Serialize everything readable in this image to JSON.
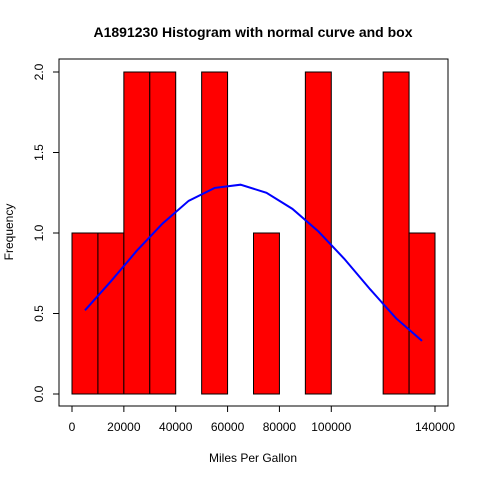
{
  "chart_data": {
    "type": "bar",
    "title": "A1891230 Histogram with normal curve and box",
    "xlabel": "Miles Per Gallon",
    "ylabel": "Frequency",
    "bin_edges": [
      0,
      10000,
      20000,
      30000,
      40000,
      50000,
      60000,
      70000,
      80000,
      90000,
      100000,
      110000,
      120000,
      130000,
      140000
    ],
    "counts": [
      1,
      1,
      2,
      2,
      0,
      2,
      0,
      1,
      0,
      2,
      0,
      0,
      2,
      1
    ],
    "bar_color": "#ff0000",
    "curve_color": "#0000ff",
    "curve_x": [
      5000,
      15000,
      25000,
      35000,
      45000,
      55000,
      65000,
      75000,
      85000,
      95000,
      105000,
      115000,
      125000,
      135000
    ],
    "curve_y": [
      0.52,
      0.7,
      0.89,
      1.06,
      1.2,
      1.28,
      1.3,
      1.25,
      1.15,
      1.01,
      0.84,
      0.65,
      0.47,
      0.33
    ],
    "x_ticks": [
      0,
      20000,
      40000,
      60000,
      80000,
      100000,
      140000
    ],
    "x_tick_labels": [
      "0",
      "20000",
      "40000",
      "60000",
      "80000",
      "100000",
      "140000"
    ],
    "xlim": [
      0,
      140000
    ],
    "y_ticks": [
      0.0,
      0.5,
      1.0,
      1.5,
      2.0
    ],
    "y_tick_labels": [
      "0.0",
      "0.5",
      "1.0",
      "1.5",
      "2.0"
    ],
    "ylim": [
      0,
      2
    ],
    "grid": false,
    "box": true
  }
}
